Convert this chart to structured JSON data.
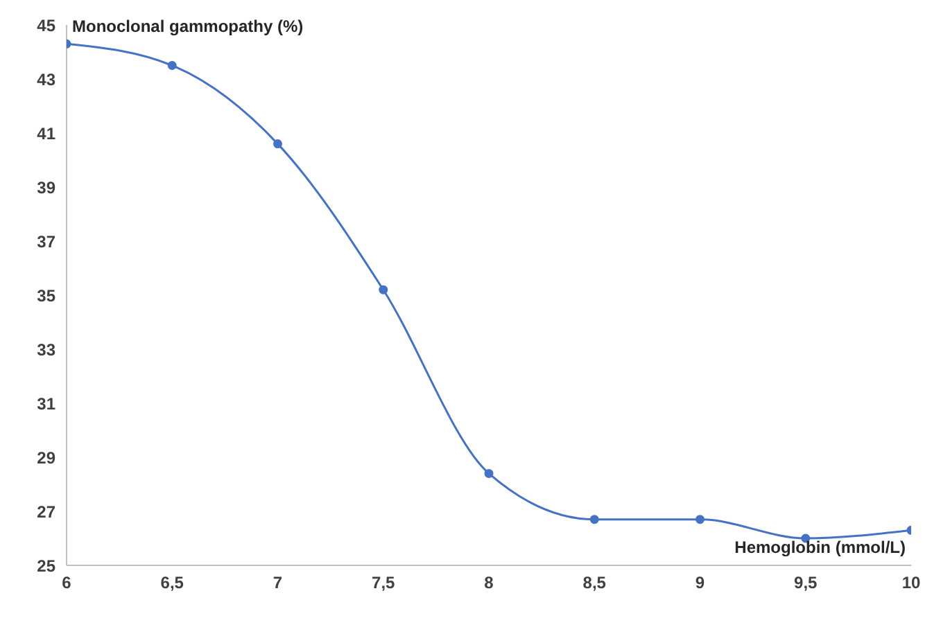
{
  "chart_data": {
    "type": "line",
    "xlabel": "Hemoglobin (mmol/L)",
    "ylabel": "Monoclonal gammopathy (%)",
    "x": [
      6,
      6.5,
      7,
      7.5,
      8,
      8.5,
      9,
      9.5,
      10
    ],
    "series": [
      {
        "color": "#4472c4",
        "values": [
          44.3,
          43.5,
          40.6,
          35.2,
          28.4,
          26.7,
          26.7,
          26.0,
          26.3
        ]
      }
    ],
    "xlim": [
      6,
      10
    ],
    "xticks": [
      6,
      {
        "value": 6.5,
        "label": "6,5"
      },
      7,
      {
        "value": 7.5,
        "label": "7,5"
      },
      8,
      {
        "value": 8.5,
        "label": "8,5"
      },
      9,
      {
        "value": 9.5,
        "label": "9,5"
      },
      10
    ],
    "ylim": [
      25,
      45
    ],
    "yticks": [
      25,
      27,
      29,
      31,
      33,
      35,
      37,
      39,
      41,
      43,
      45
    ],
    "grid": false,
    "legend": false,
    "marker": "circle",
    "line_style": "solid"
  }
}
